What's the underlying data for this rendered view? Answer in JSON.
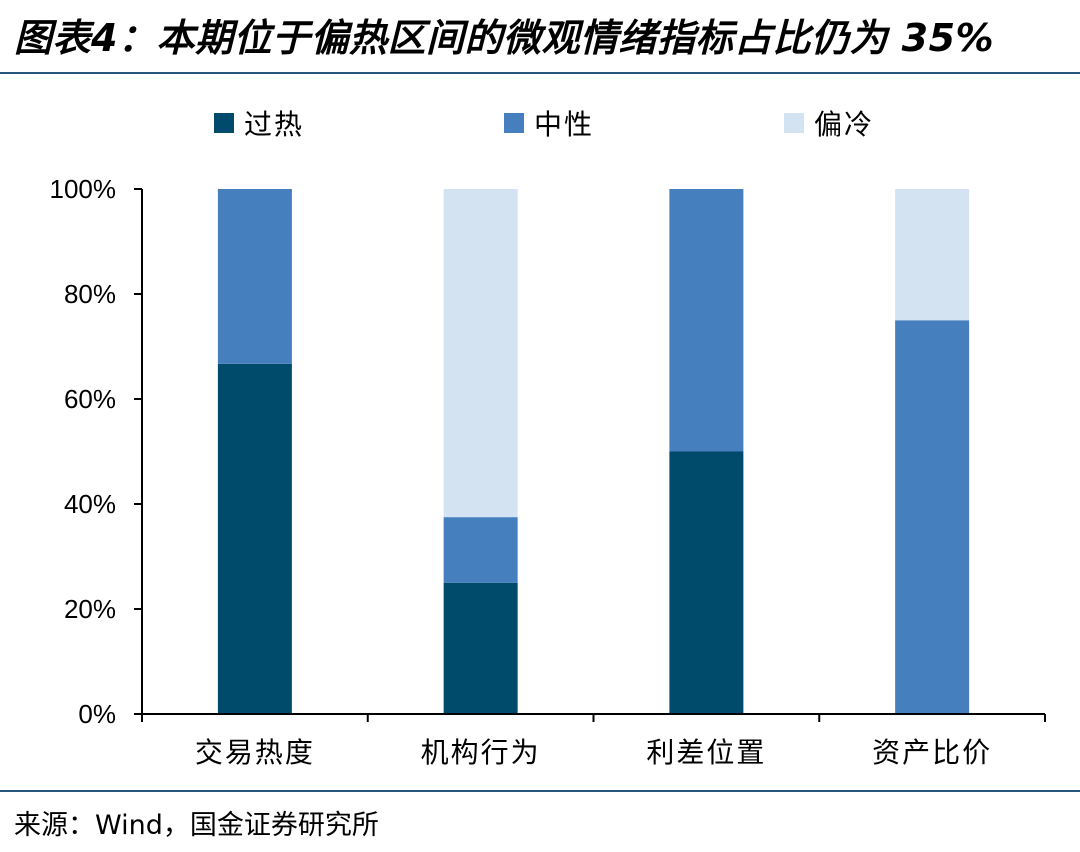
{
  "figure": {
    "title": "图表4：本期位于偏热区间的微观情绪指标占比仍为 35%",
    "source": "来源：Wind，国金证券研究所"
  },
  "colors": {
    "hot": "#004a6c",
    "neutral": "#457fbe",
    "cold": "#d3e3f2",
    "rule": "#24557d",
    "axis": "#000000"
  },
  "chart_data": {
    "type": "bar",
    "stacked": true,
    "categories": [
      "交易热度",
      "机构行为",
      "利差位置",
      "资产比价"
    ],
    "series": [
      {
        "name": "过热",
        "values": [
          66.7,
          25,
          50,
          0
        ],
        "color_key": "hot"
      },
      {
        "name": "中性",
        "values": [
          33.3,
          12.5,
          50,
          75
        ],
        "color_key": "neutral"
      },
      {
        "name": "偏冷",
        "values": [
          0,
          62.5,
          0,
          25
        ],
        "color_key": "cold"
      }
    ],
    "ylim": [
      0,
      100
    ],
    "yticks": [
      0,
      20,
      40,
      60,
      80,
      100
    ],
    "ytick_labels": [
      "0%",
      "20%",
      "40%",
      "60%",
      "80%",
      "100%"
    ],
    "grid": false,
    "legend_position": "top"
  }
}
